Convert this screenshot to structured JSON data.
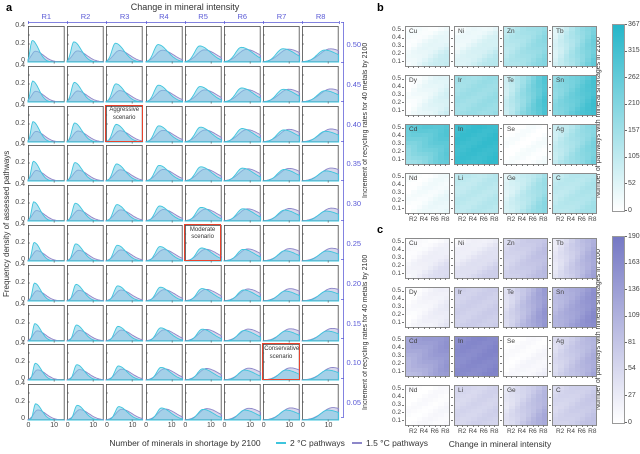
{
  "panels": {
    "a": {
      "letter": "a",
      "title": "Change in mineral intensity",
      "ylabel": "Frequency density of assessed pathways",
      "xlabel": "Number of minerals in shortage by 2100",
      "accent_color": "#5a5ad6",
      "scenario_color": "#e8432d",
      "legend": [
        {
          "label": "2 °C pathways",
          "color": "#3ec5dd"
        },
        {
          "label": "1.5 °C pathways",
          "color": "#8d87c9"
        }
      ]
    },
    "b": {
      "letter": "b",
      "temperature_label": "2 °C"
    },
    "c": {
      "letter": "c",
      "temperature_label": "1.5 °C"
    }
  },
  "chart_data": [
    {
      "type": "area",
      "panel": "a",
      "title": "Change in mineral intensity",
      "xlabel": "Number of minerals in shortage by 2100",
      "ylabel": "Frequency density of assessed pathways",
      "grid_cols": [
        "R1",
        "R2",
        "R3",
        "R4",
        "R5",
        "R6",
        "R7",
        "R8"
      ],
      "grid_rows": [
        "0.50",
        "0.45",
        "0.40",
        "0.35",
        "0.30",
        "0.25",
        "0.20",
        "0.15",
        "0.10",
        "0.05"
      ],
      "x_range": [
        0,
        14
      ],
      "y_range": [
        0,
        0.4
      ],
      "x_tick_labels": [
        "0",
        "10"
      ],
      "y_tick_labels": [
        "0.4",
        "0.2",
        "0"
      ],
      "series": [
        {
          "name": "2 °C pathways",
          "color": "#3ec5dd",
          "fill": "rgba(120,203,230,0.55)",
          "mode": [
            1.6,
            1.0,
            0.14
          ],
          "height": [
            0.25,
            -0.016,
            -0.007
          ],
          "height_min": 0.115,
          "sigma_left": [
            0.75,
            0.3
          ],
          "sigma_right": [
            2.4,
            0.42
          ]
        },
        {
          "name": "1.5 °C pathways",
          "color": "#8d87c9",
          "fill": "rgba(156,149,204,0.38)",
          "mode": [
            2.8,
            1.15,
            0.1
          ],
          "height": [
            0.125,
            0.004,
            -0.001
          ],
          "height_min": 0.1,
          "sigma_left": [
            1.5,
            0.35
          ],
          "sigma_right": [
            3.2,
            0.35
          ]
        }
      ],
      "annotations": [
        {
          "label": "Aggressive scenario",
          "row": 2,
          "col": 2
        },
        {
          "label": "Moderate scenario",
          "row": 5,
          "col": 4
        },
        {
          "label": "Conservative scenario",
          "row": 8,
          "col": 6
        }
      ]
    },
    {
      "type": "heatmap",
      "panel": "b",
      "temperature": "2 °C",
      "xlabel": "Change in mineral intensity",
      "ylabel": "Increment of recycling rates for 40 metals by 2100",
      "x_tick_labels": [
        "R2",
        "R4",
        "R6",
        "R8"
      ],
      "y_tick_labels": [
        "0.5",
        "0.4",
        "0.3",
        "0.2",
        "0.1"
      ],
      "x_values": [
        "R1",
        "R2",
        "R3",
        "R4",
        "R5",
        "R6",
        "R7",
        "R8"
      ],
      "y_values": [
        0.5,
        0.45,
        0.4,
        0.35,
        0.3,
        0.25,
        0.2,
        0.15,
        0.1,
        0.05
      ],
      "max_color": "#25b6c9",
      "colorbar": {
        "label": "Number of pathways with mineral shortages in 2100",
        "ticks": [
          367,
          315,
          262,
          210,
          157,
          105,
          52,
          0
        ],
        "max": 367
      },
      "metals": [
        {
          "name": "Cu",
          "corners": {
            "tl": 4,
            "tr": 18,
            "bl": 22,
            "br": 110
          }
        },
        {
          "name": "Ni",
          "corners": {
            "tl": 11,
            "tr": 44,
            "bl": 51,
            "br": 128
          }
        },
        {
          "name": "Zn",
          "corners": {
            "tl": 110,
            "tr": 184,
            "bl": 121,
            "br": 202
          }
        },
        {
          "name": "Tb",
          "corners": {
            "tl": 55,
            "tr": 228,
            "bl": 66,
            "br": 257
          }
        },
        {
          "name": "Dy",
          "corners": {
            "tl": 4,
            "tr": 55,
            "bl": 7,
            "br": 81
          }
        },
        {
          "name": "Ir",
          "corners": {
            "tl": 154,
            "tr": 169,
            "bl": 158,
            "br": 176
          }
        },
        {
          "name": "Te",
          "corners": {
            "tl": 73,
            "tr": 286,
            "bl": 95,
            "br": 312
          }
        },
        {
          "name": "Sn",
          "corners": {
            "tl": 176,
            "tr": 301,
            "bl": 202,
            "br": 330
          }
        },
        {
          "name": "Cd",
          "corners": {
            "tl": 264,
            "tr": 294,
            "bl": 154,
            "br": 264
          }
        },
        {
          "name": "In",
          "corners": {
            "tl": 330,
            "tr": 338,
            "bl": 323,
            "br": 338
          }
        },
        {
          "name": "Se",
          "corners": {
            "tl": 4,
            "tr": 7,
            "bl": 4,
            "br": 15
          }
        },
        {
          "name": "Ag",
          "corners": {
            "tl": 81,
            "tr": 202,
            "bl": 103,
            "br": 239
          }
        },
        {
          "name": "Nd",
          "corners": {
            "tl": 4,
            "tr": 18,
            "bl": 7,
            "br": 44
          }
        },
        {
          "name": "Li",
          "corners": {
            "tl": 103,
            "tr": 117,
            "bl": 110,
            "br": 125
          }
        },
        {
          "name": "Ge",
          "corners": {
            "tl": 44,
            "tr": 154,
            "bl": 66,
            "br": 202
          }
        },
        {
          "name": "C",
          "corners": {
            "tl": 103,
            "tr": 132,
            "bl": 110,
            "br": 154
          }
        }
      ]
    },
    {
      "type": "heatmap",
      "panel": "c",
      "temperature": "1.5 °C",
      "xlabel": "Change in mineral intensity",
      "ylabel": "Increment of recycling rates for 40 metals by 2100",
      "x_tick_labels": [
        "R2",
        "R4",
        "R6",
        "R8"
      ],
      "y_tick_labels": [
        "0.5",
        "0.4",
        "0.3",
        "0.2",
        "0.1"
      ],
      "x_values": [
        "R1",
        "R2",
        "R3",
        "R4",
        "R5",
        "R6",
        "R7",
        "R8"
      ],
      "y_values": [
        0.5,
        0.45,
        0.4,
        0.35,
        0.3,
        0.25,
        0.2,
        0.15,
        0.1,
        0.05
      ],
      "max_color": "#7578c4",
      "colorbar": {
        "label": "Number of pathways with mineral shortages in 2100",
        "ticks": [
          190,
          163,
          136,
          109,
          81,
          54,
          27,
          0
        ],
        "max": 190
      },
      "metals": [
        {
          "name": "Cu",
          "corners": {
            "tl": 2,
            "tr": 11,
            "bl": 13,
            "br": 57
          }
        },
        {
          "name": "Ni",
          "corners": {
            "tl": 10,
            "tr": 29,
            "bl": 42,
            "br": 72
          }
        },
        {
          "name": "Zn",
          "corners": {
            "tl": 53,
            "tr": 86,
            "bl": 61,
            "br": 95
          }
        },
        {
          "name": "Tb",
          "corners": {
            "tl": 29,
            "tr": 114,
            "bl": 34,
            "br": 129
          }
        },
        {
          "name": "Dy",
          "corners": {
            "tl": 2,
            "tr": 23,
            "bl": 4,
            "br": 34
          }
        },
        {
          "name": "Ir",
          "corners": {
            "tl": 63,
            "tr": 68,
            "bl": 65,
            "br": 72
          }
        },
        {
          "name": "Te",
          "corners": {
            "tl": 38,
            "tr": 137,
            "bl": 53,
            "br": 152
          }
        },
        {
          "name": "Sn",
          "corners": {
            "tl": 86,
            "tr": 152,
            "bl": 105,
            "br": 167
          }
        },
        {
          "name": "Cd",
          "corners": {
            "tl": 129,
            "tr": 152,
            "bl": 91,
            "br": 143
          }
        },
        {
          "name": "In",
          "corners": {
            "tl": 163,
            "tr": 171,
            "bl": 160,
            "br": 171
          }
        },
        {
          "name": "Se",
          "corners": {
            "tl": 2,
            "tr": 6,
            "bl": 4,
            "br": 19
          }
        },
        {
          "name": "Ag",
          "corners": {
            "tl": 46,
            "tr": 105,
            "bl": 53,
            "br": 124
          }
        },
        {
          "name": "Nd",
          "corners": {
            "tl": 2,
            "tr": 6,
            "bl": 4,
            "br": 11
          }
        },
        {
          "name": "Li",
          "corners": {
            "tl": 53,
            "tr": 61,
            "bl": 57,
            "br": 65
          }
        },
        {
          "name": "Ge",
          "corners": {
            "tl": 29,
            "tr": 95,
            "bl": 42,
            "br": 124
          }
        },
        {
          "name": "C",
          "corners": {
            "tl": 53,
            "tr": 72,
            "bl": 57,
            "br": 86
          }
        }
      ]
    }
  ]
}
